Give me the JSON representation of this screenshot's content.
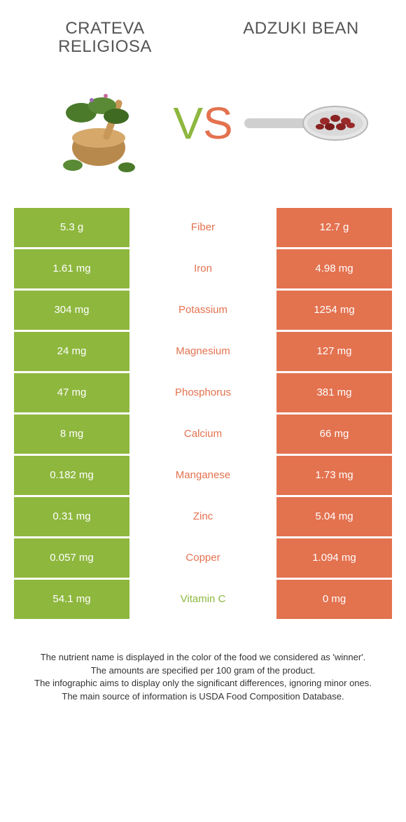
{
  "colors": {
    "left": "#8eb73e",
    "right": "#e3724f",
    "vs_v": "#8eb73e",
    "vs_s": "#e3724f",
    "title": "#555555",
    "footer_text": "#333333",
    "white": "#ffffff"
  },
  "header": {
    "left": "CRATEVA RELIGIOSA",
    "right": "ADZUKI BEAN"
  },
  "vs": {
    "v": "V",
    "s": "S"
  },
  "rows": [
    {
      "left": "5.3 g",
      "label": "Fiber",
      "right": "12.7 g",
      "winner": "right"
    },
    {
      "left": "1.61 mg",
      "label": "Iron",
      "right": "4.98 mg",
      "winner": "right"
    },
    {
      "left": "304 mg",
      "label": "Potassium",
      "right": "1254 mg",
      "winner": "right"
    },
    {
      "left": "24 mg",
      "label": "Magnesium",
      "right": "127 mg",
      "winner": "right"
    },
    {
      "left": "47 mg",
      "label": "Phosphorus",
      "right": "381 mg",
      "winner": "right"
    },
    {
      "left": "8 mg",
      "label": "Calcium",
      "right": "66 mg",
      "winner": "right"
    },
    {
      "left": "0.182 mg",
      "label": "Manganese",
      "right": "1.73 mg",
      "winner": "right"
    },
    {
      "left": "0.31 mg",
      "label": "Zinc",
      "right": "5.04 mg",
      "winner": "right"
    },
    {
      "left": "0.057 mg",
      "label": "Copper",
      "right": "1.094 mg",
      "winner": "right"
    },
    {
      "left": "54.1 mg",
      "label": "Vitamin C",
      "right": "0 mg",
      "winner": "left"
    }
  ],
  "footer": {
    "line1": "The nutrient name is displayed in the color of the food we considered as 'winner'.",
    "line2": "The amounts are specified per 100 gram of the product.",
    "line3": "The infographic aims to display only the significant differences, ignoring minor ones.",
    "line4": "The main source of information is USDA Food Composition Database."
  }
}
